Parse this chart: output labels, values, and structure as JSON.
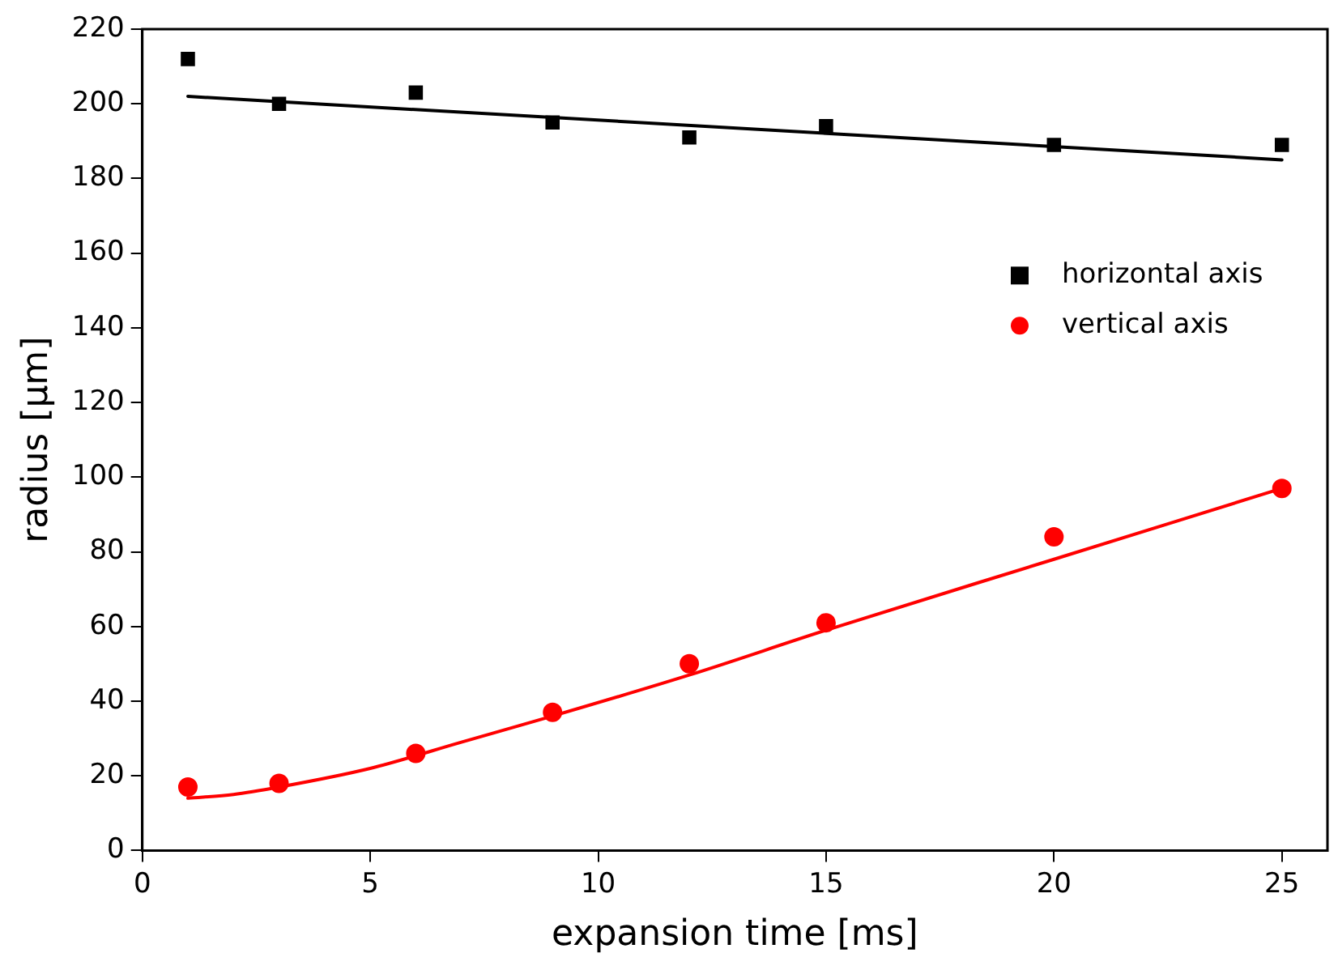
{
  "chart_data": {
    "type": "scatter",
    "xlabel": "expansion time [ms]",
    "ylabel": "radius [µm]",
    "xlim": [
      0,
      26
    ],
    "xticks": [
      0,
      5,
      10,
      15,
      20,
      25
    ],
    "ylim": [
      0,
      220
    ],
    "yticks": [
      0,
      20,
      40,
      60,
      80,
      100,
      120,
      140,
      160,
      180,
      200,
      220
    ],
    "grid": false,
    "legend": "right",
    "series": [
      {
        "name": "horizontal axis",
        "type": "scatter",
        "marker": "square",
        "color": "#000000",
        "x": [
          1,
          3,
          6,
          9,
          12,
          15,
          20,
          25
        ],
        "values": [
          212,
          200,
          203,
          195,
          191,
          194,
          189,
          189
        ]
      },
      {
        "name": "vertical axis",
        "type": "scatter",
        "marker": "circle",
        "color": "#ff0000",
        "x": [
          1,
          3,
          6,
          9,
          12,
          15,
          20,
          25
        ],
        "values": [
          17,
          18,
          26,
          37,
          50,
          61,
          84,
          97
        ]
      },
      {
        "type": "line",
        "marker": "none",
        "color": "#000000",
        "x": [
          1,
          25
        ],
        "values": [
          202,
          185
        ]
      },
      {
        "type": "line",
        "marker": "none",
        "color": "#ff0000",
        "x": [
          1,
          2,
          3,
          5,
          7,
          9,
          12,
          15,
          20,
          25
        ],
        "values": [
          14,
          15,
          17,
          22,
          29,
          36,
          47,
          59,
          78,
          97
        ]
      }
    ]
  }
}
